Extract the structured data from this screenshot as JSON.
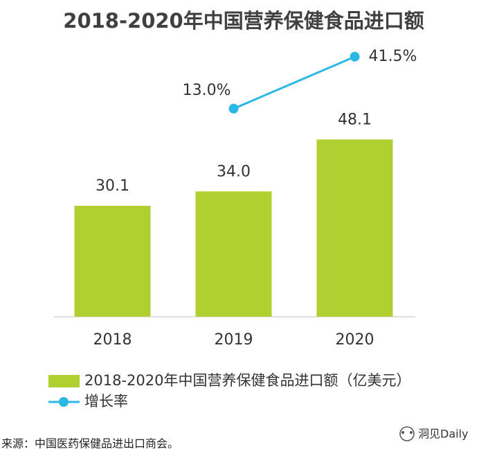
{
  "chart_data": {
    "type": "bar",
    "title": "2018-2020年中国营养保健食品进口额",
    "categories": [
      "2018",
      "2019",
      "2020"
    ],
    "series": [
      {
        "name": "2018-2020年中国营养保健食品进口额（亿美元）",
        "type": "bar",
        "color": "#b0d032",
        "values": [
          30.1,
          34.0,
          48.1
        ],
        "value_labels": [
          "30.1",
          "34.0",
          "48.1"
        ]
      },
      {
        "name": "增长率",
        "type": "line",
        "color": "#2bb8e6",
        "values": [
          null,
          13.0,
          41.5
        ],
        "value_labels": [
          null,
          "13.0%",
          "41.5%"
        ]
      }
    ],
    "source": "来源：中国医药保健品进出口商会。",
    "watermark": "洞见Daily"
  }
}
